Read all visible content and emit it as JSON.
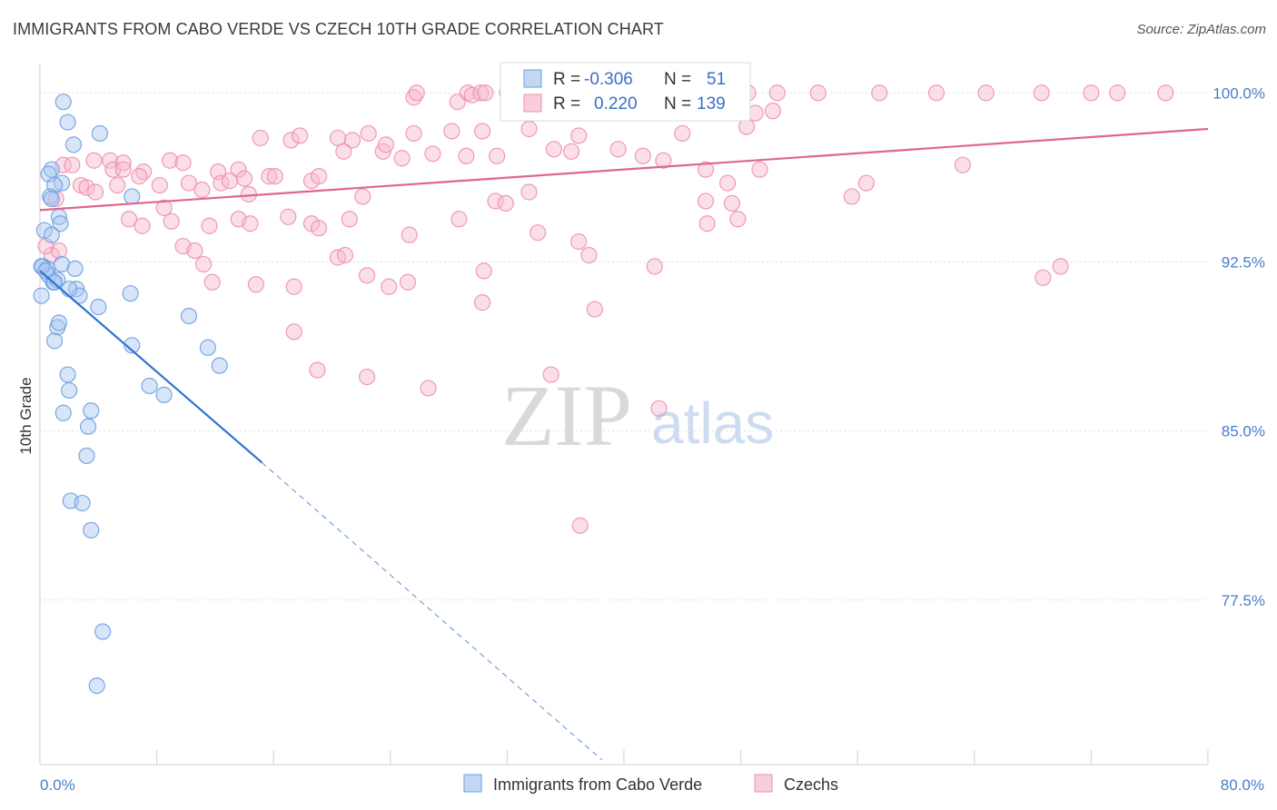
{
  "title": "IMMIGRANTS FROM CABO VERDE VS CZECH 10TH GRADE CORRELATION CHART",
  "source": "Source: ZipAtlas.com",
  "watermark": {
    "zip": "ZIP",
    "atlas": "atlas"
  },
  "colors": {
    "blue_fill": "#a9c6ef",
    "blue_stroke": "#6d9ee0",
    "blue_line": "#2f74d0",
    "pink_fill": "#f6b8cb",
    "pink_stroke": "#ee8fae",
    "pink_line": "#e06592",
    "tick": "#4a7cc9",
    "grid": "#e0e0e0"
  },
  "legend_stats": {
    "r_label": "R =",
    "n_label": "N =",
    "series": [
      {
        "name": "Immigrants from Cabo Verde",
        "r": "-0.306",
        "n": "51"
      },
      {
        "name": "Czechs",
        "r": "0.220",
        "n": "139"
      }
    ]
  },
  "chart_data": {
    "type": "scatter",
    "title": "IMMIGRANTS FROM CABO VERDE VS CZECH 10TH GRADE CORRELATION CHART",
    "xlabel": "",
    "ylabel": "10th Grade",
    "xlim": [
      0,
      80
    ],
    "ylim": [
      70.2,
      101.3
    ],
    "x_tick_labels": [
      "0.0%",
      "80.0%"
    ],
    "y_ticks": [
      77.5,
      85.0,
      92.5,
      100.0
    ],
    "y_tick_labels": [
      "77.5%",
      "85.0%",
      "92.5%",
      "100.0%"
    ],
    "legend": [
      "Immigrants from Cabo Verde",
      "Czechs"
    ],
    "series": [
      {
        "name": "Immigrants from Cabo Verde",
        "trend": {
          "x": [
            0.0,
            15.2
          ],
          "y": [
            92.1,
            83.6
          ],
          "dashed_to": [
            38.5,
            70.4
          ]
        },
        "points": [
          [
            1.6,
            99.6
          ],
          [
            1.9,
            98.7
          ],
          [
            2.3,
            97.7
          ],
          [
            4.1,
            98.2
          ],
          [
            0.8,
            96.6
          ],
          [
            0.6,
            96.4
          ],
          [
            1.5,
            96.0
          ],
          [
            1.0,
            95.9
          ],
          [
            0.7,
            95.4
          ],
          [
            0.8,
            95.3
          ],
          [
            6.3,
            95.4
          ],
          [
            0.3,
            93.9
          ],
          [
            1.3,
            94.5
          ],
          [
            1.4,
            94.2
          ],
          [
            0.8,
            93.7
          ],
          [
            0.2,
            92.3
          ],
          [
            0.5,
            92.2
          ],
          [
            1.5,
            92.4
          ],
          [
            2.4,
            92.2
          ],
          [
            0.6,
            91.9
          ],
          [
            0.9,
            91.6
          ],
          [
            1.2,
            91.7
          ],
          [
            2.5,
            91.3
          ],
          [
            2.7,
            91.0
          ],
          [
            2.0,
            91.3
          ],
          [
            6.2,
            91.1
          ],
          [
            0.1,
            91.0
          ],
          [
            4.0,
            90.5
          ],
          [
            10.2,
            90.1
          ],
          [
            1.2,
            89.6
          ],
          [
            1.3,
            89.8
          ],
          [
            1.0,
            89.0
          ],
          [
            6.3,
            88.8
          ],
          [
            11.5,
            88.7
          ],
          [
            12.3,
            87.9
          ],
          [
            1.9,
            87.5
          ],
          [
            7.5,
            87.0
          ],
          [
            8.5,
            86.6
          ],
          [
            2.0,
            86.8
          ],
          [
            3.5,
            85.9
          ],
          [
            1.6,
            85.8
          ],
          [
            3.3,
            85.2
          ],
          [
            3.2,
            83.9
          ],
          [
            2.1,
            81.9
          ],
          [
            2.9,
            81.8
          ],
          [
            3.5,
            80.6
          ],
          [
            4.3,
            76.1
          ],
          [
            3.9,
            73.7
          ],
          [
            0.1,
            92.3
          ],
          [
            1.0,
            91.6
          ],
          [
            0.4,
            92.1
          ]
        ]
      },
      {
        "name": "Czechs",
        "trend": {
          "x": [
            0.0,
            80.0
          ],
          "y": [
            94.8,
            98.4
          ]
        },
        "points": [
          [
            25.6,
            99.8
          ],
          [
            25.8,
            100.0
          ],
          [
            28.6,
            99.6
          ],
          [
            29.3,
            100.0
          ],
          [
            29.6,
            99.9
          ],
          [
            30.2,
            100.0
          ],
          [
            30.5,
            100.0
          ],
          [
            32.0,
            100.0
          ],
          [
            32.5,
            100.0
          ],
          [
            35.0,
            99.9
          ],
          [
            36.0,
            100.0
          ],
          [
            38.1,
            100.0
          ],
          [
            39.0,
            100.0
          ],
          [
            40.5,
            99.9
          ],
          [
            41.0,
            100.0
          ],
          [
            46.2,
            100.0
          ],
          [
            48.5,
            100.0
          ],
          [
            50.2,
            99.2
          ],
          [
            50.5,
            100.0
          ],
          [
            53.3,
            100.0
          ],
          [
            57.5,
            100.0
          ],
          [
            61.4,
            100.0
          ],
          [
            64.8,
            100.0
          ],
          [
            68.6,
            100.0
          ],
          [
            72.0,
            100.0
          ],
          [
            73.8,
            100.0
          ],
          [
            77.1,
            100.0
          ],
          [
            25.6,
            98.2
          ],
          [
            28.2,
            98.3
          ],
          [
            30.3,
            98.3
          ],
          [
            33.5,
            98.4
          ],
          [
            36.9,
            98.1
          ],
          [
            44.0,
            98.2
          ],
          [
            48.4,
            98.5
          ],
          [
            49.0,
            99.1
          ],
          [
            15.1,
            98.0
          ],
          [
            17.2,
            97.9
          ],
          [
            17.8,
            98.1
          ],
          [
            21.4,
            97.9
          ],
          [
            22.5,
            98.2
          ],
          [
            23.5,
            97.4
          ],
          [
            23.7,
            97.7
          ],
          [
            20.4,
            98.0
          ],
          [
            20.8,
            97.4
          ],
          [
            24.8,
            97.1
          ],
          [
            26.9,
            97.3
          ],
          [
            29.2,
            97.2
          ],
          [
            31.3,
            97.2
          ],
          [
            35.2,
            97.5
          ],
          [
            36.4,
            97.4
          ],
          [
            39.6,
            97.5
          ],
          [
            41.3,
            97.2
          ],
          [
            42.7,
            97.0
          ],
          [
            45.6,
            96.6
          ],
          [
            47.1,
            96.0
          ],
          [
            49.3,
            96.6
          ],
          [
            1.6,
            96.8
          ],
          [
            2.2,
            96.8
          ],
          [
            3.7,
            97.0
          ],
          [
            4.8,
            97.0
          ],
          [
            5.0,
            96.6
          ],
          [
            5.7,
            96.9
          ],
          [
            7.1,
            96.5
          ],
          [
            8.9,
            97.0
          ],
          [
            9.8,
            96.9
          ],
          [
            12.2,
            96.5
          ],
          [
            13.6,
            96.6
          ],
          [
            14.0,
            96.2
          ],
          [
            15.7,
            96.3
          ],
          [
            16.1,
            96.3
          ],
          [
            18.6,
            96.1
          ],
          [
            19.1,
            96.3
          ],
          [
            12.4,
            96.0
          ],
          [
            13.0,
            96.1
          ],
          [
            2.8,
            95.9
          ],
          [
            3.2,
            95.8
          ],
          [
            3.8,
            95.6
          ],
          [
            5.3,
            95.9
          ],
          [
            8.2,
            95.9
          ],
          [
            10.2,
            96.0
          ],
          [
            11.1,
            95.7
          ],
          [
            14.3,
            95.5
          ],
          [
            22.1,
            95.4
          ],
          [
            31.2,
            95.2
          ],
          [
            31.9,
            95.1
          ],
          [
            33.5,
            95.6
          ],
          [
            45.6,
            95.2
          ],
          [
            47.4,
            95.1
          ],
          [
            1.1,
            95.3
          ],
          [
            6.1,
            94.4
          ],
          [
            7.0,
            94.1
          ],
          [
            8.5,
            94.9
          ],
          [
            9.0,
            94.3
          ],
          [
            11.6,
            94.1
          ],
          [
            13.6,
            94.4
          ],
          [
            14.4,
            94.2
          ],
          [
            17.0,
            94.5
          ],
          [
            18.6,
            94.2
          ],
          [
            19.1,
            94.0
          ],
          [
            21.2,
            94.4
          ],
          [
            25.3,
            93.7
          ],
          [
            28.7,
            94.4
          ],
          [
            34.1,
            93.8
          ],
          [
            36.9,
            93.4
          ],
          [
            37.6,
            92.8
          ],
          [
            42.1,
            92.3
          ],
          [
            45.7,
            94.2
          ],
          [
            47.8,
            94.4
          ],
          [
            55.6,
            95.4
          ],
          [
            56.6,
            96.0
          ],
          [
            63.2,
            96.8
          ],
          [
            69.9,
            92.3
          ],
          [
            68.7,
            91.8
          ],
          [
            5.7,
            96.6
          ],
          [
            6.8,
            96.3
          ],
          [
            9.8,
            93.2
          ],
          [
            10.6,
            93.0
          ],
          [
            11.2,
            92.4
          ],
          [
            11.8,
            91.6
          ],
          [
            14.8,
            91.5
          ],
          [
            17.4,
            91.4
          ],
          [
            20.4,
            92.7
          ],
          [
            20.9,
            92.8
          ],
          [
            22.4,
            91.9
          ],
          [
            23.9,
            91.4
          ],
          [
            25.2,
            91.6
          ],
          [
            30.3,
            90.7
          ],
          [
            30.4,
            92.1
          ],
          [
            38.0,
            90.4
          ],
          [
            35.0,
            87.5
          ],
          [
            19.0,
            87.7
          ],
          [
            22.4,
            87.4
          ],
          [
            26.6,
            86.9
          ],
          [
            37.0,
            80.8
          ],
          [
            42.4,
            86.0
          ],
          [
            17.4,
            89.4
          ],
          [
            0.8,
            92.8
          ],
          [
            1.3,
            93.0
          ],
          [
            0.4,
            93.2
          ]
        ]
      }
    ]
  }
}
